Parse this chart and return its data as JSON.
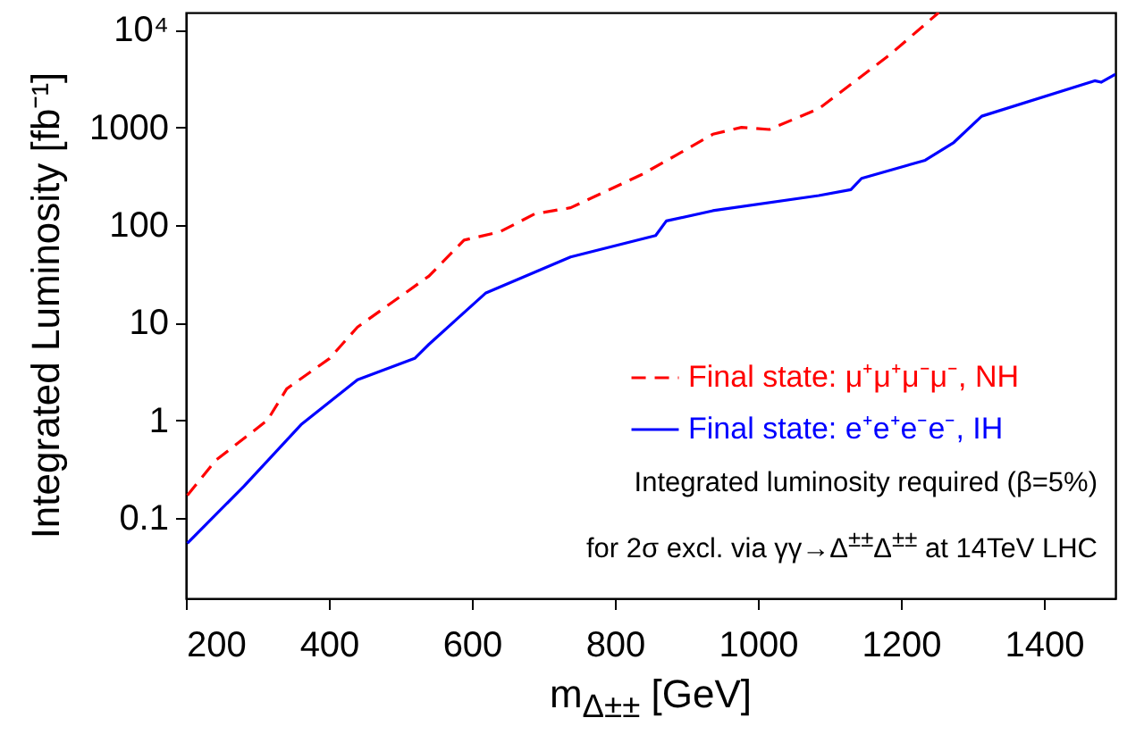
{
  "chart_data": {
    "type": "line",
    "xlabel": "m$_{Δ±±}$ [GeV]",
    "ylabel": "Integrated Luminosity [fb⁻¹]",
    "xlim": [
      200,
      1500
    ],
    "xticks": [
      200,
      400,
      600,
      800,
      1000,
      1200,
      1400
    ],
    "ylim": [
      0.015,
      15000
    ],
    "yticks": [
      0.1,
      1,
      10,
      100,
      1000,
      {
        "value": 10000,
        "label": "10⁴"
      }
    ],
    "log": "y",
    "grid": false,
    "legend": "right",
    "marker": "none",
    "annotations": [
      "Integrated luminosity required (β=5%)",
      "for 2σ excl. via γγ→Δ$^{±±}$Δ$^{±±}$ at 14TeV LHC"
    ],
    "series": [
      {
        "name": "Final state: μ⁺μ⁺μ⁻μ⁻, NH",
        "color": "#ff0000",
        "line_style": "dashed",
        "x": [
          202,
          242,
          314,
          341,
          401,
          440,
          540,
          589,
          639,
          688,
          738,
          838,
          886,
          937,
          977,
          1016,
          1085,
          1184,
          1253
        ],
        "values": [
          0.17,
          0.39,
          1,
          2.1,
          4.3,
          9,
          30,
          70,
          85,
          130,
          150,
          330,
          520,
          850,
          1000,
          950,
          1550,
          5500,
          15000
        ]
      },
      {
        "name": "Final state: e⁺e⁺e⁻e⁻, IH",
        "color": "#0000ff",
        "line_style": "solid",
        "x": [
          202,
          281,
          361,
          440,
          520,
          540,
          619,
          738,
          857,
          872,
          937,
          1085,
          1130,
          1145,
          1234,
          1274,
          1313,
          1471,
          1480,
          1500
        ],
        "values": [
          0.055,
          0.21,
          0.9,
          2.6,
          4.3,
          6,
          20,
          47,
          78,
          110,
          140,
          200,
          230,
          300,
          460,
          700,
          1300,
          3000,
          2900,
          3500
        ]
      }
    ]
  }
}
